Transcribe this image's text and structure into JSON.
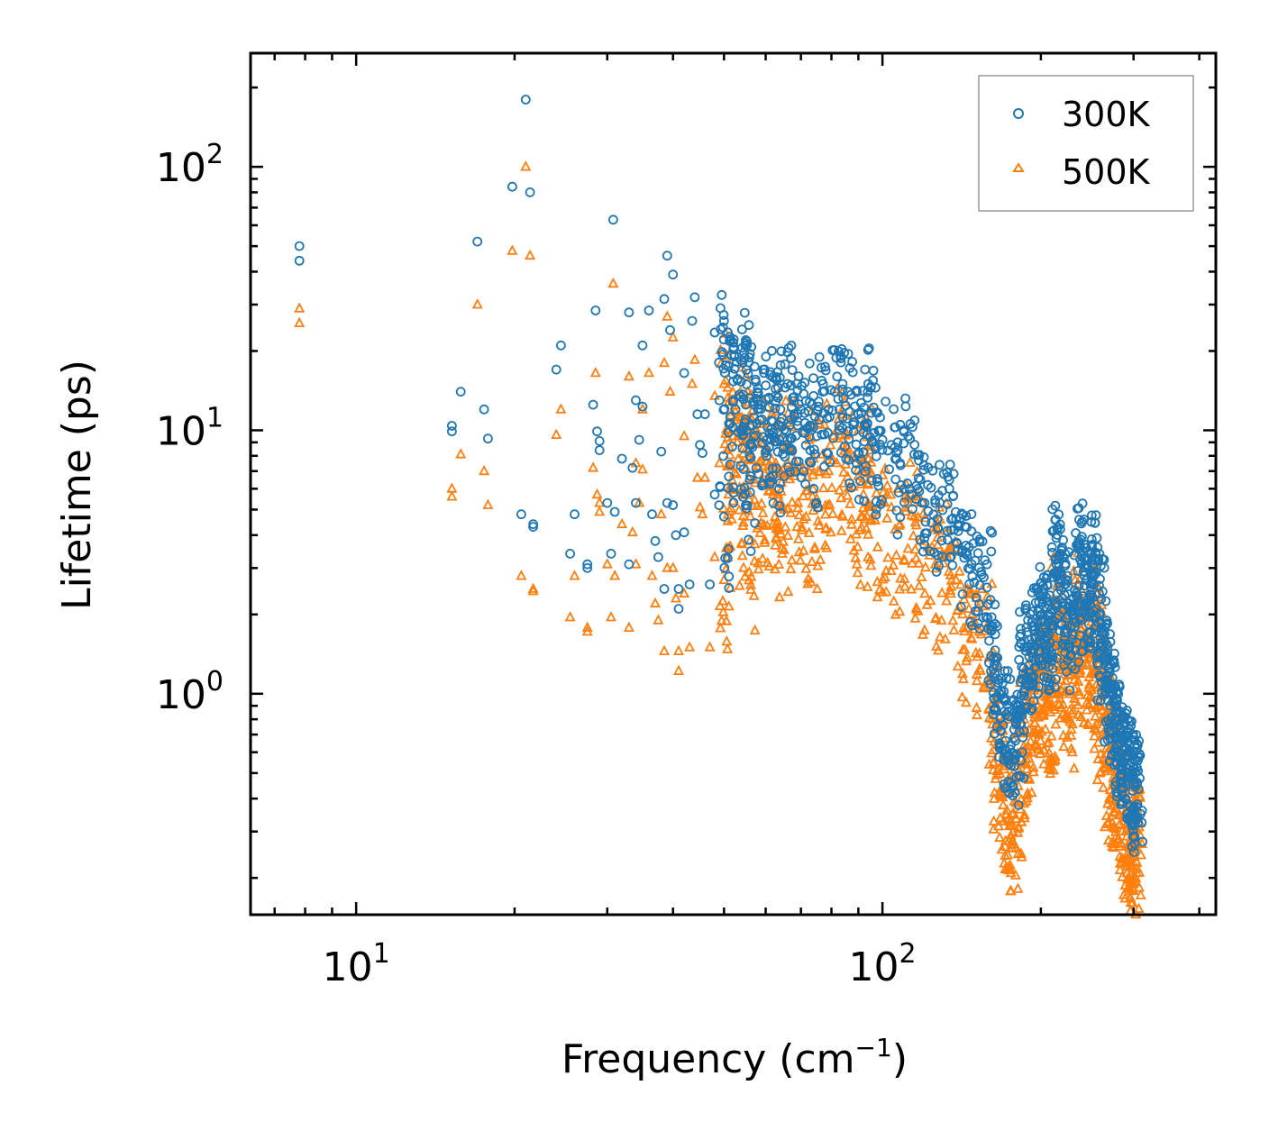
{
  "chart_data": {
    "type": "scatter",
    "x_scale": "log",
    "y_scale": "log",
    "xlim": [
      6.3,
      430
    ],
    "ylim": [
      0.145,
      270
    ],
    "xlabel_main": "Frequency (cm",
    "xlabel_sup": "−1",
    "xlabel_end": ")",
    "ylabel": "Lifetime (ps)",
    "x_ticks": [
      {
        "value": 10,
        "base": "10",
        "exp": "1"
      },
      {
        "value": 100,
        "base": "10",
        "exp": "2"
      }
    ],
    "y_ticks": [
      {
        "value": 1,
        "base": "10",
        "exp": "0"
      },
      {
        "value": 10,
        "base": "10",
        "exp": "1"
      },
      {
        "value": 100,
        "base": "10",
        "exp": "2"
      }
    ],
    "legend_position": "top-right",
    "series": [
      {
        "name": "300K",
        "color": "#1f77b4",
        "marker": "circle"
      },
      {
        "name": "500K",
        "color": "#ff7f0e",
        "marker": "triangle"
      }
    ],
    "points_300K": [
      [
        7.8,
        50
      ],
      [
        7.8,
        44
      ],
      [
        15.2,
        10.4
      ],
      [
        15.2,
        9.9
      ],
      [
        15.8,
        14
      ],
      [
        17,
        52
      ],
      [
        17.5,
        12
      ],
      [
        17.8,
        9.3
      ],
      [
        19.8,
        84
      ],
      [
        20.6,
        4.8
      ],
      [
        21,
        180
      ],
      [
        21.4,
        80
      ],
      [
        21.7,
        4.4
      ],
      [
        21.7,
        4.3
      ],
      [
        24,
        17
      ],
      [
        24.5,
        21
      ],
      [
        25.5,
        3.4
      ],
      [
        26,
        4.8
      ],
      [
        27.5,
        3.1
      ],
      [
        27.5,
        3
      ],
      [
        28.2,
        12.5
      ],
      [
        28.5,
        28.5
      ],
      [
        28.7,
        9.9
      ],
      [
        29,
        9.1
      ],
      [
        29,
        8.4
      ],
      [
        30,
        5.3
      ],
      [
        30.5,
        3.4
      ],
      [
        30.8,
        63
      ],
      [
        31,
        4.9
      ],
      [
        32,
        7.8
      ],
      [
        33,
        28
      ],
      [
        33,
        3.1
      ],
      [
        33.5,
        7.2
      ],
      [
        34,
        13
      ],
      [
        34,
        5.3
      ],
      [
        34.5,
        9.2
      ],
      [
        35,
        12.3
      ],
      [
        35,
        21
      ],
      [
        36,
        28.5
      ],
      [
        36.5,
        4.8
      ],
      [
        37,
        3.8
      ],
      [
        37.5,
        3.3
      ],
      [
        38,
        8.3
      ],
      [
        38.5,
        31.5
      ],
      [
        38.5,
        2.5
      ],
      [
        39,
        46
      ],
      [
        39,
        5.3
      ],
      [
        39.5,
        24
      ],
      [
        40,
        39
      ],
      [
        40,
        5.2
      ],
      [
        40.5,
        4
      ],
      [
        41,
        2.5
      ],
      [
        41,
        2.1
      ],
      [
        42,
        16.5
      ],
      [
        42,
        4.1
      ],
      [
        43,
        2.6
      ],
      [
        43.5,
        26
      ],
      [
        44,
        32
      ],
      [
        44.5,
        11.5
      ],
      [
        45,
        8.8
      ],
      [
        45.5,
        8.2
      ],
      [
        46,
        11.5
      ],
      [
        47,
        2.6
      ],
      [
        48,
        23.5
      ],
      [
        48,
        5.7
      ],
      [
        49,
        13
      ],
      [
        50,
        26
      ],
      [
        50,
        4.7
      ],
      [
        51,
        17.5
      ],
      [
        51,
        9.8
      ],
      [
        52,
        16.3
      ],
      [
        53,
        15.5
      ],
      [
        54,
        10
      ],
      [
        55,
        22
      ],
      [
        55,
        12.5
      ],
      [
        56,
        19.5
      ],
      [
        56,
        6.5
      ],
      [
        57,
        11.2
      ],
      [
        58,
        12.5
      ],
      [
        59,
        11
      ],
      [
        60,
        14.8
      ],
      [
        61,
        12.2
      ],
      [
        62,
        9.8
      ],
      [
        63,
        15.5
      ],
      [
        64,
        12
      ],
      [
        65,
        8.6
      ],
      [
        66,
        15
      ],
      [
        67,
        14.8
      ],
      [
        68,
        11.5
      ],
      [
        70,
        12
      ],
      [
        72,
        10.2
      ],
      [
        74,
        13.5
      ],
      [
        75,
        9.5
      ],
      [
        77,
        14
      ],
      [
        79,
        12
      ],
      [
        82,
        16
      ],
      [
        84,
        15
      ],
      [
        86,
        14
      ],
      [
        88,
        10.5
      ],
      [
        90,
        11.5
      ],
      [
        92,
        9.8
      ],
      [
        94,
        15
      ],
      [
        95,
        14.5
      ],
      [
        97,
        8.5
      ],
      [
        100,
        9.2
      ],
      [
        104,
        8.8
      ],
      [
        108,
        7.5
      ],
      [
        112,
        9.5
      ],
      [
        115,
        8.1
      ],
      [
        118,
        6.5
      ],
      [
        122,
        6.2
      ],
      [
        126,
        5.3
      ],
      [
        130,
        5.9
      ],
      [
        134,
        6.0
      ],
      [
        138,
        4.6
      ],
      [
        142,
        3.5
      ],
      [
        146,
        3.6
      ],
      [
        150,
        3.2
      ],
      [
        154,
        2.9
      ],
      [
        158,
        3.1
      ],
      [
        162,
        1.8
      ],
      [
        166,
        1.1
      ],
      [
        170,
        0.95
      ],
      [
        174,
        0.82
      ],
      [
        178,
        0.68
      ],
      [
        182,
        0.85
      ],
      [
        186,
        1.5
      ],
      [
        190,
        1.6
      ],
      [
        194,
        1.8
      ],
      [
        198,
        2.1
      ],
      [
        202,
        2.4
      ],
      [
        206,
        2.0
      ],
      [
        210,
        1.9
      ],
      [
        214,
        3.9
      ],
      [
        218,
        3.4
      ],
      [
        222,
        2.6
      ],
      [
        226,
        2.2
      ],
      [
        232,
        1.8
      ],
      [
        236,
        3.8
      ],
      [
        240,
        3.5
      ],
      [
        244,
        2.7
      ],
      [
        250,
        2.6
      ],
      [
        254,
        3.4
      ],
      [
        258,
        2.4
      ],
      [
        262,
        1.7
      ],
      [
        266,
        1.4
      ],
      [
        270,
        1.2
      ],
      [
        274,
        1.0
      ],
      [
        278,
        0.9
      ],
      [
        282,
        0.76
      ],
      [
        286,
        0.68
      ],
      [
        290,
        0.62
      ],
      [
        294,
        0.58
      ],
      [
        298,
        0.55
      ],
      [
        302,
        0.5
      ],
      [
        305,
        0.46
      ]
    ],
    "points_500K": [
      [
        7.8,
        29
      ],
      [
        7.8,
        25.5
      ],
      [
        15.2,
        6
      ],
      [
        15.2,
        5.6
      ],
      [
        15.8,
        8.1
      ],
      [
        17,
        30
      ],
      [
        17.5,
        7
      ],
      [
        17.8,
        5.2
      ],
      [
        19.8,
        48
      ],
      [
        20.6,
        2.8
      ],
      [
        21,
        100
      ],
      [
        21.4,
        46
      ],
      [
        21.7,
        2.5
      ],
      [
        21.7,
        2.45
      ],
      [
        24,
        9.6
      ],
      [
        24.5,
        12
      ],
      [
        25.5,
        1.95
      ],
      [
        26,
        2.8
      ],
      [
        27.5,
        1.78
      ],
      [
        27.5,
        1.72
      ],
      [
        28.2,
        7.2
      ],
      [
        28.5,
        16.5
      ],
      [
        28.7,
        5.7
      ],
      [
        29,
        5.3
      ],
      [
        29,
        4.9
      ],
      [
        30,
        3.1
      ],
      [
        30.5,
        1.95
      ],
      [
        30.8,
        36
      ],
      [
        31,
        2.8
      ],
      [
        32,
        4.4
      ],
      [
        33,
        16
      ],
      [
        33,
        1.78
      ],
      [
        33.5,
        4.1
      ],
      [
        34,
        7.5
      ],
      [
        34,
        3.1
      ],
      [
        34.5,
        5.3
      ],
      [
        35,
        7.1
      ],
      [
        35,
        12
      ],
      [
        36,
        16.5
      ],
      [
        36.5,
        2.8
      ],
      [
        37,
        2.2
      ],
      [
        37.5,
        1.9
      ],
      [
        38,
        4.8
      ],
      [
        38.5,
        18
      ],
      [
        38.5,
        1.45
      ],
      [
        39,
        27
      ],
      [
        39,
        3.0
      ],
      [
        39.5,
        14
      ],
      [
        40,
        22.5
      ],
      [
        40,
        3.0
      ],
      [
        40.5,
        2.3
      ],
      [
        41,
        1.45
      ],
      [
        41,
        1.22
      ],
      [
        42,
        9.5
      ],
      [
        42,
        2.4
      ],
      [
        43,
        1.5
      ],
      [
        43.5,
        15
      ],
      [
        44,
        18.5
      ],
      [
        44.5,
        6.6
      ],
      [
        45,
        5.1
      ],
      [
        45.5,
        4.8
      ],
      [
        46,
        6.6
      ],
      [
        47,
        1.5
      ],
      [
        48,
        13.5
      ],
      [
        48,
        3.3
      ],
      [
        49,
        7.5
      ],
      [
        50,
        15
      ],
      [
        50,
        2.7
      ],
      [
        51,
        10
      ],
      [
        51,
        5.7
      ],
      [
        52,
        9.5
      ],
      [
        53,
        9.0
      ],
      [
        54,
        5.8
      ],
      [
        55,
        12.8
      ],
      [
        55,
        7.2
      ],
      [
        56,
        11.3
      ],
      [
        56,
        3.8
      ],
      [
        57,
        6.5
      ],
      [
        58,
        7.2
      ],
      [
        59,
        6.4
      ],
      [
        60,
        8.6
      ],
      [
        61,
        7.1
      ],
      [
        62,
        5.7
      ],
      [
        63,
        9.0
      ],
      [
        64,
        7.0
      ],
      [
        65,
        5.0
      ],
      [
        66,
        8.7
      ],
      [
        67,
        8.6
      ],
      [
        68,
        6.7
      ],
      [
        70,
        7.0
      ],
      [
        72,
        5.9
      ],
      [
        74,
        7.8
      ],
      [
        75,
        5.5
      ],
      [
        77,
        8.1
      ],
      [
        79,
        7.0
      ],
      [
        82,
        9.3
      ],
      [
        84,
        8.7
      ],
      [
        86,
        8.1
      ],
      [
        88,
        6.1
      ],
      [
        90,
        6.7
      ],
      [
        92,
        5.7
      ],
      [
        94,
        8.7
      ],
      [
        95,
        8.4
      ],
      [
        97,
        4.9
      ],
      [
        100,
        5.3
      ],
      [
        104,
        5.1
      ],
      [
        108,
        4.4
      ],
      [
        112,
        5.5
      ],
      [
        115,
        4.7
      ],
      [
        118,
        3.8
      ],
      [
        122,
        3.6
      ],
      [
        126,
        3.1
      ],
      [
        130,
        3.4
      ],
      [
        134,
        3.5
      ],
      [
        138,
        2.7
      ],
      [
        142,
        2.0
      ],
      [
        146,
        2.1
      ],
      [
        150,
        1.86
      ],
      [
        154,
        1.68
      ],
      [
        158,
        1.8
      ],
      [
        162,
        1.05
      ],
      [
        166,
        0.64
      ],
      [
        170,
        0.55
      ],
      [
        174,
        0.48
      ],
      [
        178,
        0.39
      ],
      [
        182,
        0.49
      ],
      [
        186,
        0.87
      ],
      [
        190,
        0.93
      ],
      [
        194,
        1.05
      ],
      [
        198,
        1.22
      ],
      [
        202,
        1.4
      ],
      [
        206,
        1.16
      ],
      [
        210,
        1.1
      ],
      [
        214,
        2.26
      ],
      [
        218,
        1.97
      ],
      [
        222,
        1.5
      ],
      [
        226,
        1.28
      ],
      [
        232,
        1.04
      ],
      [
        236,
        2.2
      ],
      [
        240,
        2.0
      ],
      [
        244,
        1.57
      ],
      [
        250,
        1.5
      ],
      [
        254,
        1.97
      ],
      [
        258,
        1.4
      ],
      [
        262,
        0.99
      ],
      [
        266,
        0.81
      ],
      [
        270,
        0.7
      ],
      [
        274,
        0.58
      ],
      [
        278,
        0.52
      ],
      [
        282,
        0.44
      ],
      [
        286,
        0.39
      ],
      [
        290,
        0.36
      ],
      [
        294,
        0.34
      ],
      [
        298,
        0.32
      ],
      [
        302,
        0.29
      ],
      [
        305,
        0.27
      ]
    ]
  }
}
